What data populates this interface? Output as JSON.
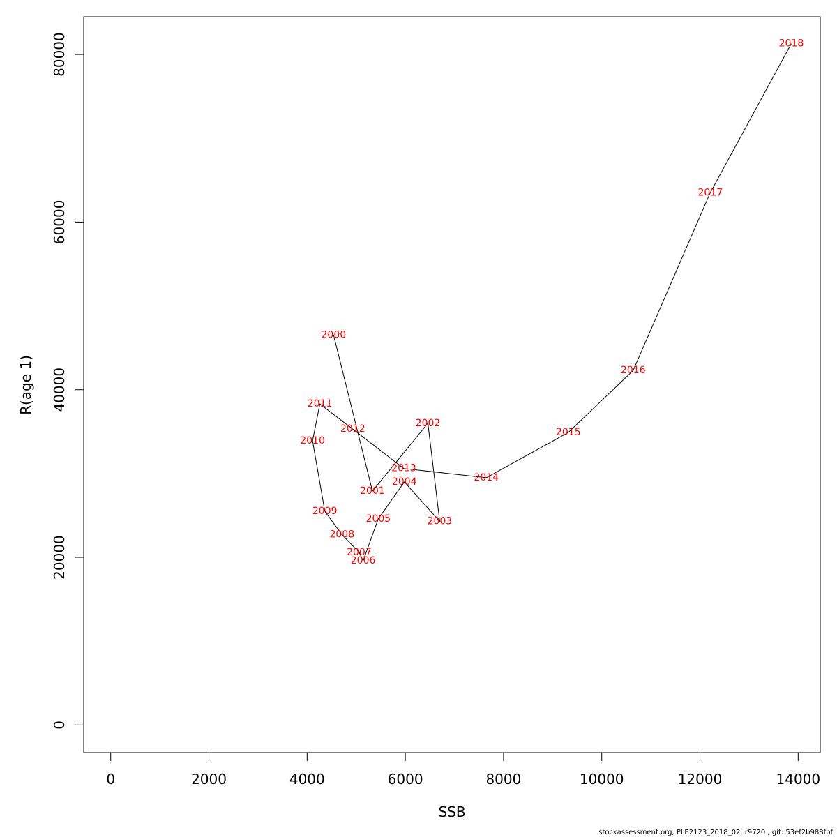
{
  "chart_data": {
    "type": "line",
    "xlabel": "SSB",
    "ylabel": "R(age 1)",
    "xlim": [
      -550,
      14450
    ],
    "ylim": [
      -3300,
      84500
    ],
    "x_ticks": [
      0,
      2000,
      4000,
      6000,
      8000,
      10000,
      12000,
      14000
    ],
    "y_ticks": [
      0,
      20000,
      40000,
      60000,
      80000
    ],
    "grid": false,
    "line_color": "#000000",
    "label_color": "#ff0000",
    "points": [
      {
        "year": "2000",
        "x": 4540,
        "y": 46500
      },
      {
        "year": "2001",
        "x": 5330,
        "y": 27900
      },
      {
        "year": "2002",
        "x": 6460,
        "y": 36000
      },
      {
        "year": "2003",
        "x": 6700,
        "y": 24300
      },
      {
        "year": "2004",
        "x": 5980,
        "y": 29000
      },
      {
        "year": "2005",
        "x": 5450,
        "y": 24600
      },
      {
        "year": "2006",
        "x": 5140,
        "y": 19600
      },
      {
        "year": "2007",
        "x": 5060,
        "y": 20600
      },
      {
        "year": "2008",
        "x": 4710,
        "y": 22700
      },
      {
        "year": "2009",
        "x": 4360,
        "y": 25500
      },
      {
        "year": "2010",
        "x": 4110,
        "y": 33900
      },
      {
        "year": "2011",
        "x": 4260,
        "y": 38300
      },
      {
        "year": "2012",
        "x": 4930,
        "y": 35300
      },
      {
        "year": "2013",
        "x": 5970,
        "y": 30600
      },
      {
        "year": "2014",
        "x": 7650,
        "y": 29500
      },
      {
        "year": "2015",
        "x": 9320,
        "y": 34900
      },
      {
        "year": "2016",
        "x": 10640,
        "y": 42300
      },
      {
        "year": "2017",
        "x": 12210,
        "y": 63500
      },
      {
        "year": "2018",
        "x": 13860,
        "y": 81300
      }
    ]
  },
  "footer": {
    "text": "stockassessment.org, PLE2123_2018_02, r9720 , git: 53ef2b988fbf"
  }
}
